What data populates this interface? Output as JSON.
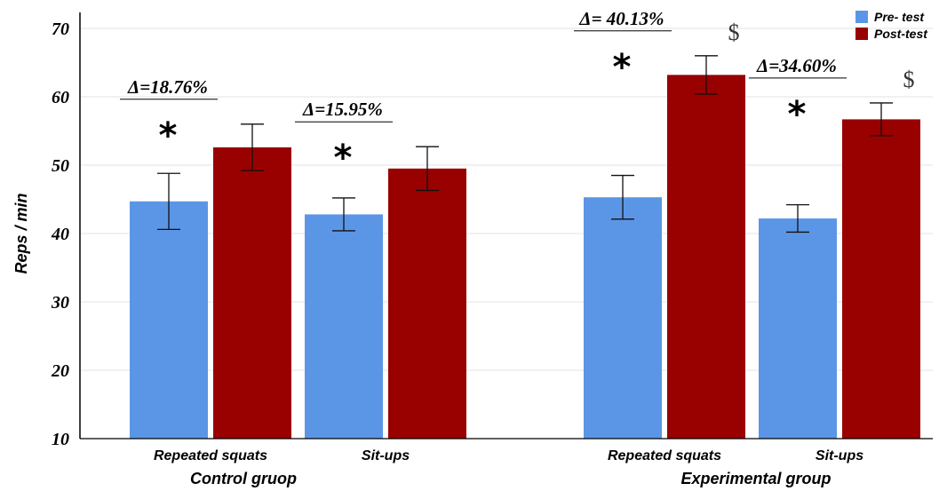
{
  "chart_data": {
    "type": "bar",
    "title": "",
    "ylabel": "Reps / min",
    "ylim": [
      10,
      70
    ],
    "yticks": [
      "10",
      "20",
      "30",
      "40",
      "50",
      "60",
      "70"
    ],
    "grid": true,
    "legend_position": "top-right",
    "groups": [
      {
        "label": "Control gruop",
        "categories": [
          {
            "label": "Repeated squats",
            "pre": 44.7,
            "pre_err": 4.1,
            "post": 52.6,
            "post_err": 3.4,
            "delta": "Δ=18.76%",
            "star": "*",
            "dollar": ""
          },
          {
            "label": "Sit-ups",
            "pre": 42.8,
            "pre_err": 2.4,
            "post": 49.5,
            "post_err": 3.2,
            "delta": "Δ=15.95%",
            "star": "*",
            "dollar": ""
          }
        ]
      },
      {
        "label": "Experimental group",
        "categories": [
          {
            "label": "Repeated squats",
            "pre": 45.3,
            "pre_err": 3.2,
            "post": 63.2,
            "post_err": 2.8,
            "delta": "Δ= 40.13%",
            "star": "*",
            "dollar": "$"
          },
          {
            "label": "Sit-ups",
            "pre": 42.2,
            "pre_err": 2.0,
            "post": 56.7,
            "post_err": 2.4,
            "delta": "Δ=34.60%",
            "star": "*",
            "dollar": "$"
          }
        ]
      }
    ],
    "series": [
      {
        "name": "Pre- test",
        "color": "#5b96e6"
      },
      {
        "name": "Post-test",
        "color": "#990000"
      }
    ]
  }
}
